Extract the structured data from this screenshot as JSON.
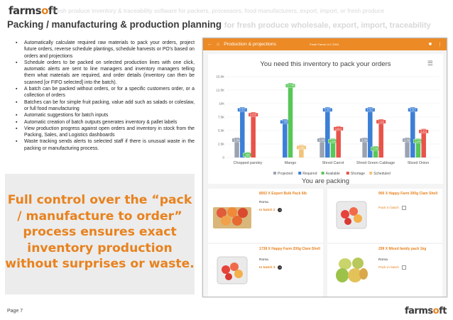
{
  "header": {
    "logo_main": "farms",
    "logo_accent": "o",
    "logo_end": "ft",
    "tagline": "Fresh produce inventory & traceability software for packers, processors, food manufacturers, export, import, or fresh produce",
    "title": "Packing / manufacturing & production planning",
    "title_faint": "for fresh produce wholesale, export, import, traceability"
  },
  "features": [
    "Automatically calculate required raw materials to pack your orders, project future orders, reverse schedule plantings, schedule harvests or PO's based on orders and projections",
    "Schedule orders to be packed on selected production lines with one click, automatic alerts are sent to line managers and inventory managers telling them what materials are required, and order details (inventory can then be scanned [or FIFO selected] into the batch).",
    "A batch can be packed without orders, or for a specific customers order, or a collection of orders",
    "Batches can be for simple fruit packing, value add such as salads or coleslaw, or full food manufacturing",
    "Automatic suggestions for batch inputs",
    "Automatic creation of batch outputs generates inventory & pallet labels",
    "View production progress against open orders and inventory in stock from the Packing, Sales, and Logistics dashboards",
    "Waste tracking sends alerts to selected staff if there is unusual waste in the packing or manufacturing process."
  ],
  "promo": "Full control over the “pack / manufacture to order” process ensures exact inventory production without surprises or waste.",
  "footer": {
    "page": "Page 7",
    "logo_main": "farms",
    "logo_accent": "o",
    "logo_end": "ft"
  },
  "app": {
    "bar_title": "Production & projections",
    "farm_name": "Fresh Farms LLC 2024",
    "home_icon": "home-icon",
    "back_icon": "back-arrow-icon",
    "chat_icon": "chat-icon",
    "more_icon": "more-vertical-icon",
    "color_accent": "#ec8a25",
    "chart_title": "You need this inventory to pack your orders",
    "packing_title": "You are packing",
    "packing_items": [
      {
        "name": "8002 X Export Bulk Pack 6lb",
        "customer": "Roma",
        "status": "In batch 2",
        "in_batch": true
      },
      {
        "name": "900 X Happy Farm 200g Clam Shell",
        "customer": "",
        "status": "Pack in batch",
        "in_batch": false
      },
      {
        "name": "1738 X Happy Farm 200g Clam Shell",
        "customer": "Roma",
        "status": "In batch 3",
        "in_batch": true
      },
      {
        "name": "299 X Mixed family pack 1kg",
        "customer": "Roma",
        "status": "Pack in batch",
        "in_batch": false
      }
    ]
  },
  "chart_data": {
    "type": "bar",
    "title": "You need this inventory to pack your orders",
    "categories": [
      "Chopped parsley",
      "Mango",
      "Shred Carrot",
      "Shred Green Cabbage",
      "Sliced Onion"
    ],
    "y_ticks": [
      "0",
      "2.5K",
      "5.0K",
      "7.5K",
      "10K",
      "12.5K",
      "15.0K"
    ],
    "ylim": [
      0,
      15000
    ],
    "grid": true,
    "legend_position": "bottom",
    "series": [
      {
        "name": "Projected",
        "color": "#9aa3b2",
        "values": [
          3700,
          0,
          3700,
          3700,
          3700
        ],
        "labels": [
          "3,700",
          "",
          "3,700",
          "3,700",
          "3,700"
        ]
      },
      {
        "name": "Required",
        "color": "#3b7fd6",
        "values": [
          9312,
          7080,
          9312,
          9312,
          9312
        ],
        "labels": [
          "9,312",
          "7,080",
          "9,312",
          "9,312",
          "9,312"
        ]
      },
      {
        "name": "Available",
        "color": "#57c757",
        "values": [
          980,
          13798,
          3498,
          2098,
          3498
        ],
        "labels": [
          "980",
          "13,798",
          "3,498",
          "2,098",
          "3,498"
        ]
      },
      {
        "name": "Shortage",
        "color": "#e8534a",
        "values": [
          8413,
          0,
          5813,
          7113,
          5313
        ],
        "labels": [
          "8,413",
          "",
          "5,813",
          "7,113",
          "5,313"
        ]
      },
      {
        "name": "Scheduled",
        "color": "#f2c37a",
        "values": [
          0,
          2330,
          0,
          0,
          0
        ],
        "labels": [
          "",
          "2,330",
          "",
          "",
          ""
        ]
      }
    ]
  }
}
